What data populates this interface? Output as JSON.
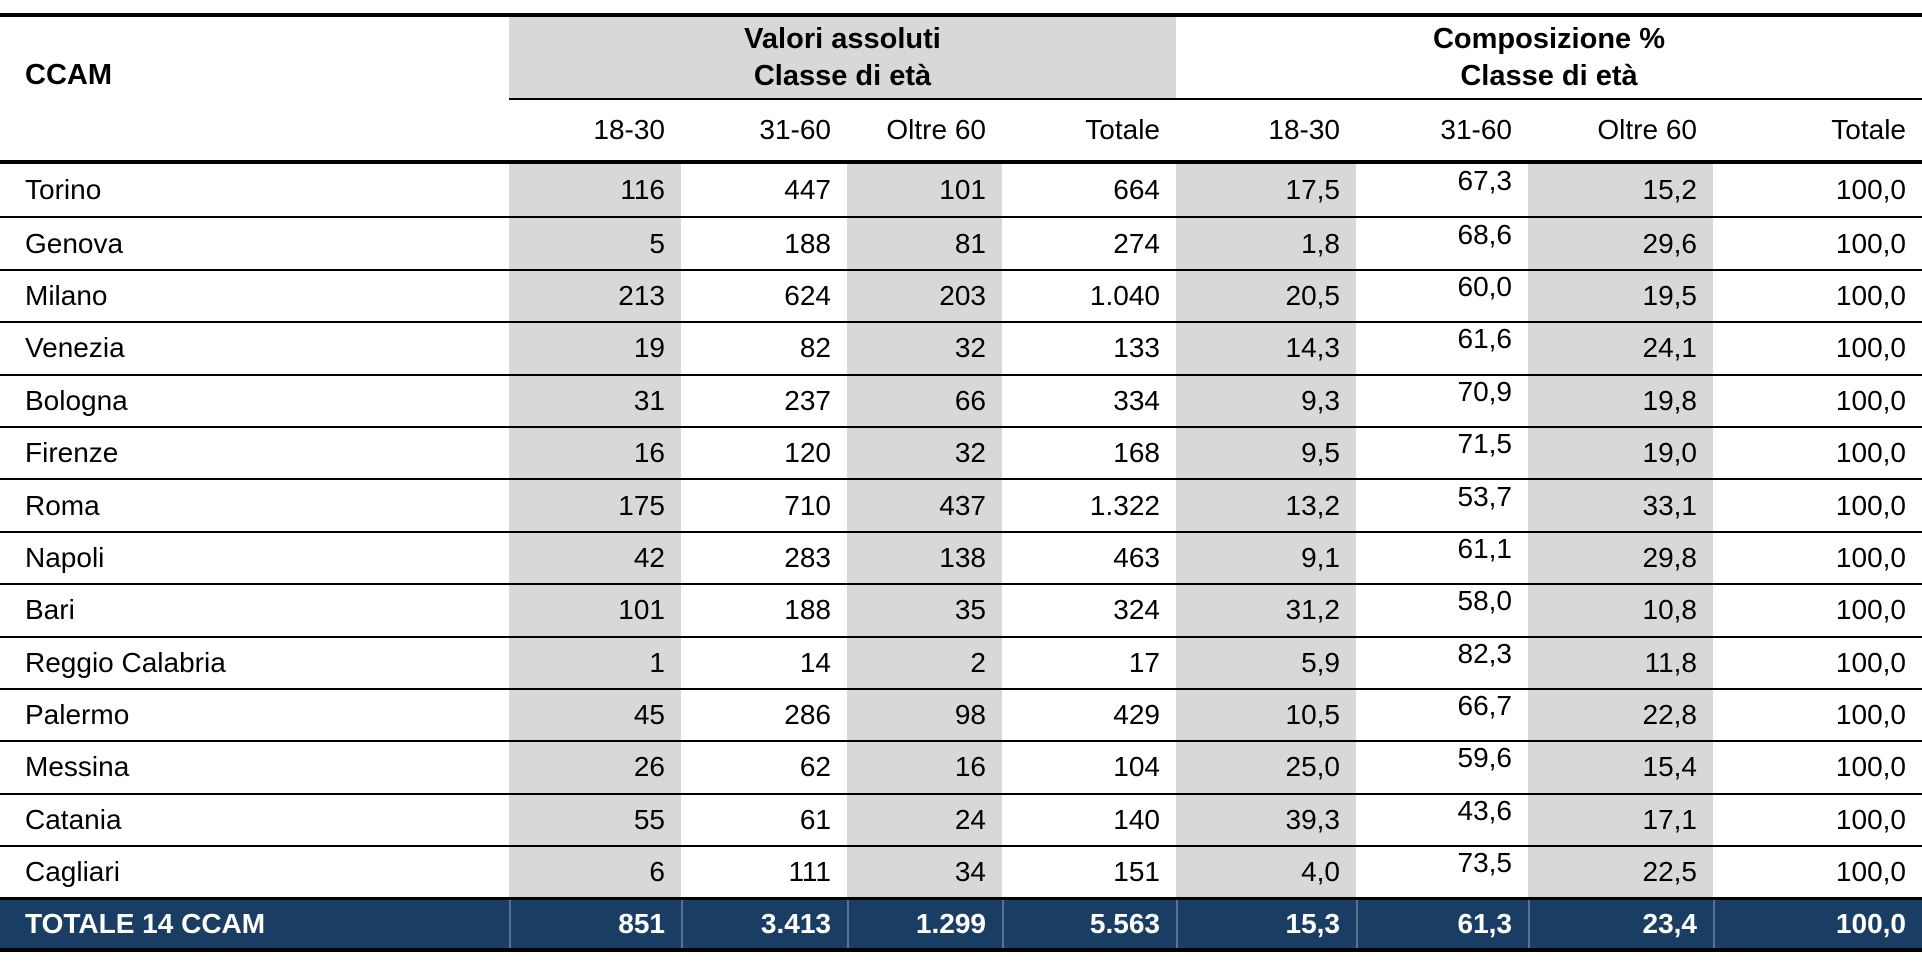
{
  "table": {
    "corner_label": "CCAM",
    "groups": [
      {
        "title_line1": "Valori assoluti",
        "title_line2": "Classe di età"
      },
      {
        "title_line1": "Composizione %",
        "title_line2": "Classe di età"
      }
    ],
    "col_headers": [
      "18-30",
      "31-60",
      "Oltre 60",
      "Totale",
      "18-30",
      "31-60",
      "Oltre 60",
      "Totale"
    ],
    "rows": [
      {
        "name": "Torino",
        "values": [
          "116",
          "447",
          "101",
          "664",
          "17,5",
          "67,3",
          "15,2",
          "100,0"
        ]
      },
      {
        "name": "Genova",
        "values": [
          "5",
          "188",
          "81",
          "274",
          "1,8",
          "68,6",
          "29,6",
          "100,0"
        ]
      },
      {
        "name": "Milano",
        "values": [
          "213",
          "624",
          "203",
          "1.040",
          "20,5",
          "60,0",
          "19,5",
          "100,0"
        ]
      },
      {
        "name": "Venezia",
        "values": [
          "19",
          "82",
          "32",
          "133",
          "14,3",
          "61,6",
          "24,1",
          "100,0"
        ]
      },
      {
        "name": "Bologna",
        "values": [
          "31",
          "237",
          "66",
          "334",
          "9,3",
          "70,9",
          "19,8",
          "100,0"
        ]
      },
      {
        "name": "Firenze",
        "values": [
          "16",
          "120",
          "32",
          "168",
          "9,5",
          "71,5",
          "19,0",
          "100,0"
        ]
      },
      {
        "name": "Roma",
        "values": [
          "175",
          "710",
          "437",
          "1.322",
          "13,2",
          "53,7",
          "33,1",
          "100,0"
        ]
      },
      {
        "name": "Napoli",
        "values": [
          "42",
          "283",
          "138",
          "463",
          "9,1",
          "61,1",
          "29,8",
          "100,0"
        ]
      },
      {
        "name": "Bari",
        "values": [
          "101",
          "188",
          "35",
          "324",
          "31,2",
          "58,0",
          "10,8",
          "100,0"
        ]
      },
      {
        "name": "Reggio Calabria",
        "values": [
          "1",
          "14",
          "2",
          "17",
          "5,9",
          "82,3",
          "11,8",
          "100,0"
        ]
      },
      {
        "name": "Palermo",
        "values": [
          "45",
          "286",
          "98",
          "429",
          "10,5",
          "66,7",
          "22,8",
          "100,0"
        ]
      },
      {
        "name": "Messina",
        "values": [
          "26",
          "62",
          "16",
          "104",
          "25,0",
          "59,6",
          "15,4",
          "100,0"
        ]
      },
      {
        "name": "Catania",
        "values": [
          "55",
          "61",
          "24",
          "140",
          "39,3",
          "43,6",
          "17,1",
          "100,0"
        ]
      },
      {
        "name": "Cagliari",
        "values": [
          "6",
          "111",
          "34",
          "151",
          "4,0",
          "73,5",
          "22,5",
          "100,0"
        ]
      }
    ],
    "total_row": {
      "name": "TOTALE 14 CCAM",
      "values": [
        "851",
        "3.413",
        "1.299",
        "5.563",
        "15,3",
        "61,3",
        "23,4",
        "100,0"
      ]
    }
  },
  "colors": {
    "band_gray": "#d8d8d8",
    "total_navy": "#1a3e63",
    "rule_black": "#000000"
  }
}
